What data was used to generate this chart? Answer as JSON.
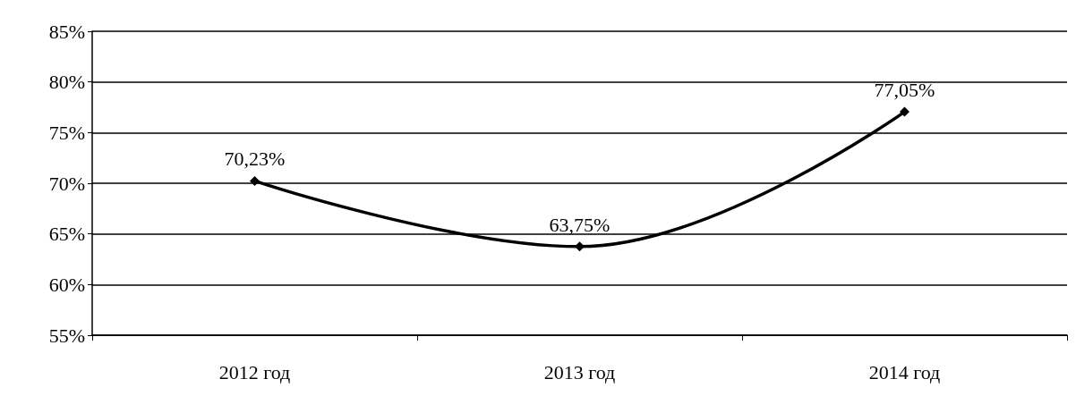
{
  "chart_data": {
    "type": "line",
    "categories": [
      "2012 год",
      "2013 год",
      "2014 год"
    ],
    "series": [
      {
        "color": "#000000",
        "values": [
          70.23,
          63.75,
          77.05
        ],
        "value_labels": [
          "70,23%",
          "63,75%",
          "77,05%"
        ]
      }
    ],
    "ylim": [
      55,
      85
    ],
    "yticks": [
      {
        "value": 55,
        "label": "55%"
      },
      {
        "value": 60,
        "label": "60%"
      },
      {
        "value": 65,
        "label": "65%"
      },
      {
        "value": 70,
        "label": "70%"
      },
      {
        "value": 75,
        "label": "75%"
      },
      {
        "value": 80,
        "label": "80%"
      },
      {
        "value": 85,
        "label": "85%"
      }
    ],
    "grid": "y",
    "marker": "diamond",
    "line_style": "solid"
  }
}
